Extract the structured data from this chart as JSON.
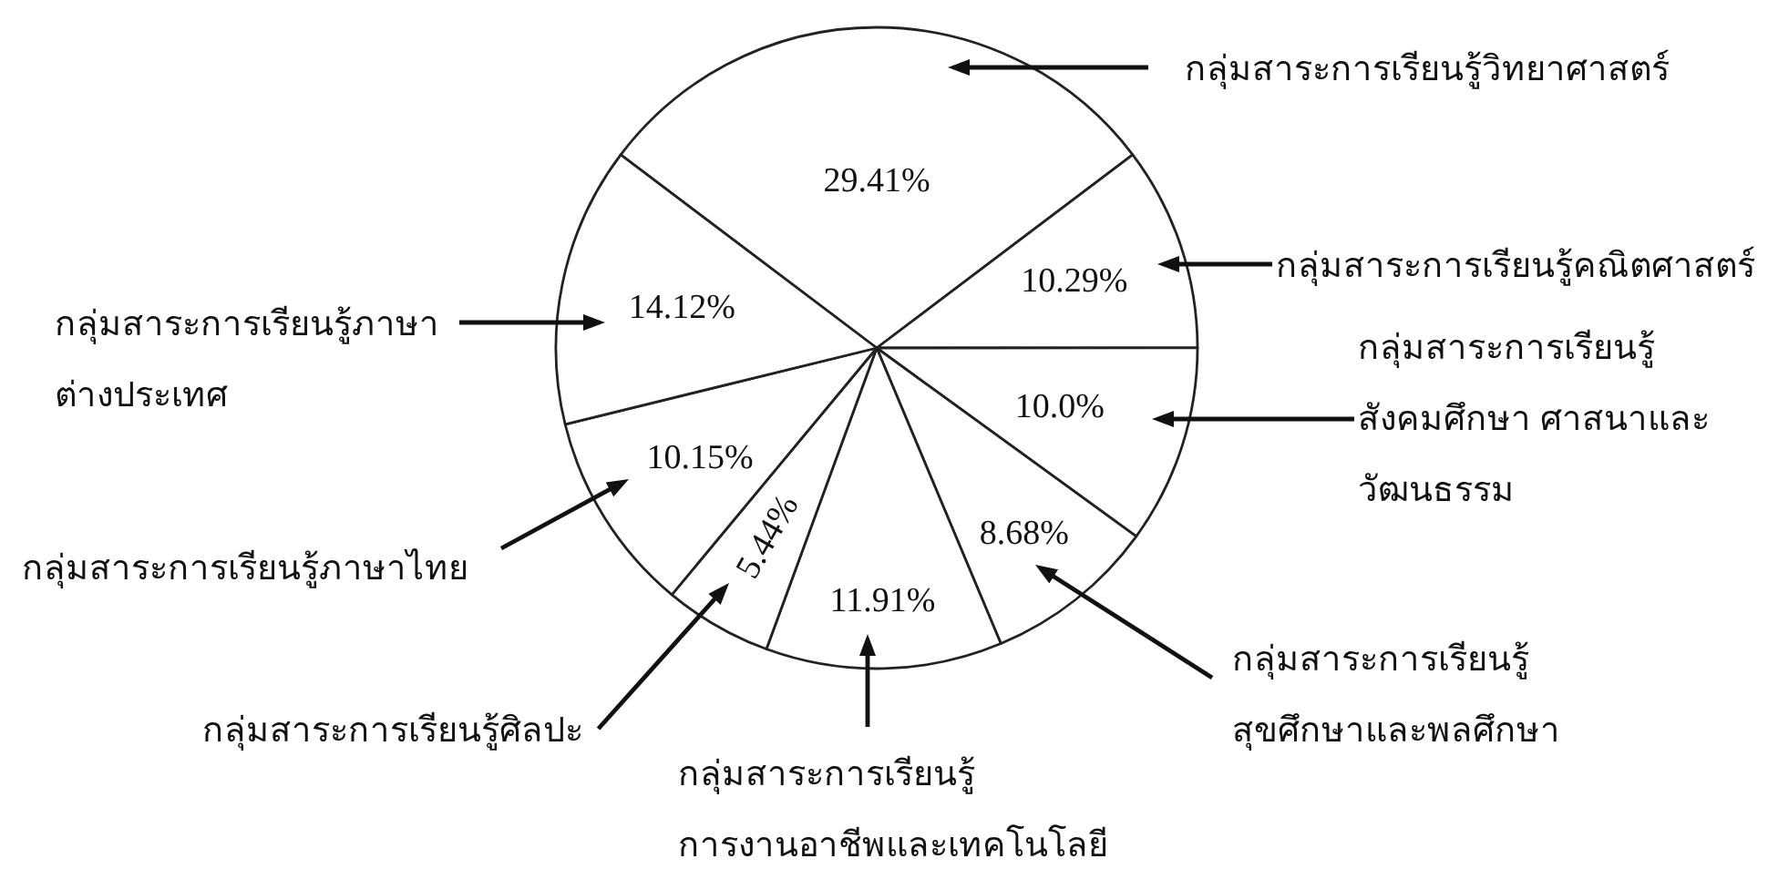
{
  "chart_data": {
    "type": "pie",
    "categories": [
      "กลุ่มสาระการเรียนรู้วิทยาศาสตร์",
      "กลุ่มสาระการเรียนรู้คณิตศาสตร์",
      "กลุ่มสาระการเรียนรู้\nสังคมศึกษา ศาสนาและ\nวัฒนธรรม",
      "กลุ่มสาระการเรียนรู้\nสุขศึกษาและพลศึกษา",
      "กลุ่มสาระการเรียนรู้\nการงานอาชีพและเทคโนโลยี",
      "กลุ่มสาระการเรียนรู้ศิลปะ",
      "กลุ่มสาระการเรียนรู้ภาษาไทย",
      "กลุ่มสาระการเรียนรู้ภาษา\nต่างประเทศ"
    ],
    "values": [
      29.41,
      10.29,
      10.0,
      8.68,
      11.91,
      5.44,
      10.15,
      14.12
    ],
    "value_labels": [
      "29.41%",
      "10.29%",
      "10.0%",
      "8.68%",
      "11.91%",
      "5.44%",
      "10.15%",
      "14.12%"
    ],
    "colors": [
      "#ffffff",
      "#ffffff",
      "#ffffff",
      "#ffffff",
      "#ffffff",
      "#ffffff",
      "#ffffff",
      "#ffffff"
    ]
  }
}
